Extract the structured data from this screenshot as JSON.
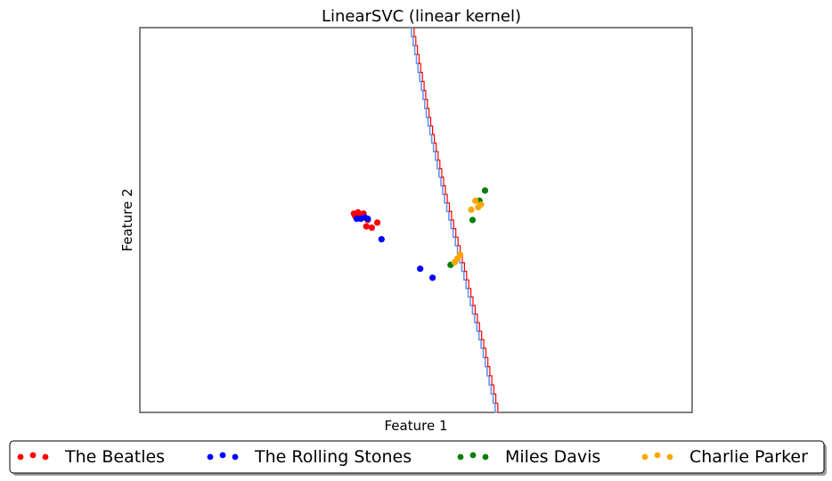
{
  "chart_data": {
    "type": "scatter",
    "title": "LinearSVC (linear kernel)",
    "xlabel": "Feature 1",
    "ylabel": "Feature 2",
    "xticks": [],
    "yticks": [],
    "xlim": [
      -1.5,
      2.5
    ],
    "ylim": [
      -1.5,
      1.5
    ],
    "grid": false,
    "legend_position": "bottom-center",
    "series": [
      {
        "name": "The Beatles",
        "color": "#ff0000",
        "points": [
          {
            "x": 0.05,
            "y": 0.05
          },
          {
            "x": 0.08,
            "y": 0.06
          },
          {
            "x": 0.12,
            "y": 0.05
          },
          {
            "x": 0.06,
            "y": 0.03
          },
          {
            "x": 0.15,
            "y": 0.0
          },
          {
            "x": 0.22,
            "y": -0.02
          },
          {
            "x": 0.14,
            "y": -0.05
          },
          {
            "x": 0.18,
            "y": -0.06
          },
          {
            "x": 0.1,
            "y": 0.02
          }
        ]
      },
      {
        "name": "The Rolling Stones",
        "color": "#0000ff",
        "points": [
          {
            "x": 0.07,
            "y": 0.01
          },
          {
            "x": 0.1,
            "y": 0.01
          },
          {
            "x": 0.13,
            "y": 0.02
          },
          {
            "x": 0.15,
            "y": 0.01
          },
          {
            "x": 0.25,
            "y": -0.15
          },
          {
            "x": 0.53,
            "y": -0.38
          },
          {
            "x": 0.62,
            "y": -0.45
          }
        ]
      },
      {
        "name": "Miles Davis",
        "color": "#008000",
        "points": [
          {
            "x": 0.75,
            "y": -0.35
          },
          {
            "x": 0.91,
            "y": 0.0
          },
          {
            "x": 1.0,
            "y": 0.23
          },
          {
            "x": 0.96,
            "y": 0.15
          }
        ]
      },
      {
        "name": "Charlie Parker",
        "color": "#ffa500",
        "points": [
          {
            "x": 0.93,
            "y": 0.15
          },
          {
            "x": 0.97,
            "y": 0.12
          },
          {
            "x": 0.95,
            "y": 0.1
          },
          {
            "x": 0.9,
            "y": 0.08
          },
          {
            "x": 0.8,
            "y": -0.3
          },
          {
            "x": 0.78,
            "y": -0.33
          },
          {
            "x": 0.82,
            "y": -0.27
          }
        ]
      }
    ],
    "decision_boundary": {
      "color_red": "#ff0000",
      "color_blue": "#6495ed",
      "points": [
        {
          "x": 0.48,
          "y": 1.5
        },
        {
          "x": 0.6,
          "y": 0.8
        },
        {
          "x": 0.72,
          "y": 0.2
        },
        {
          "x": 0.86,
          "y": -0.4
        },
        {
          "x": 1.0,
          "y": -1.0
        },
        {
          "x": 1.1,
          "y": -1.5
        }
      ]
    }
  }
}
